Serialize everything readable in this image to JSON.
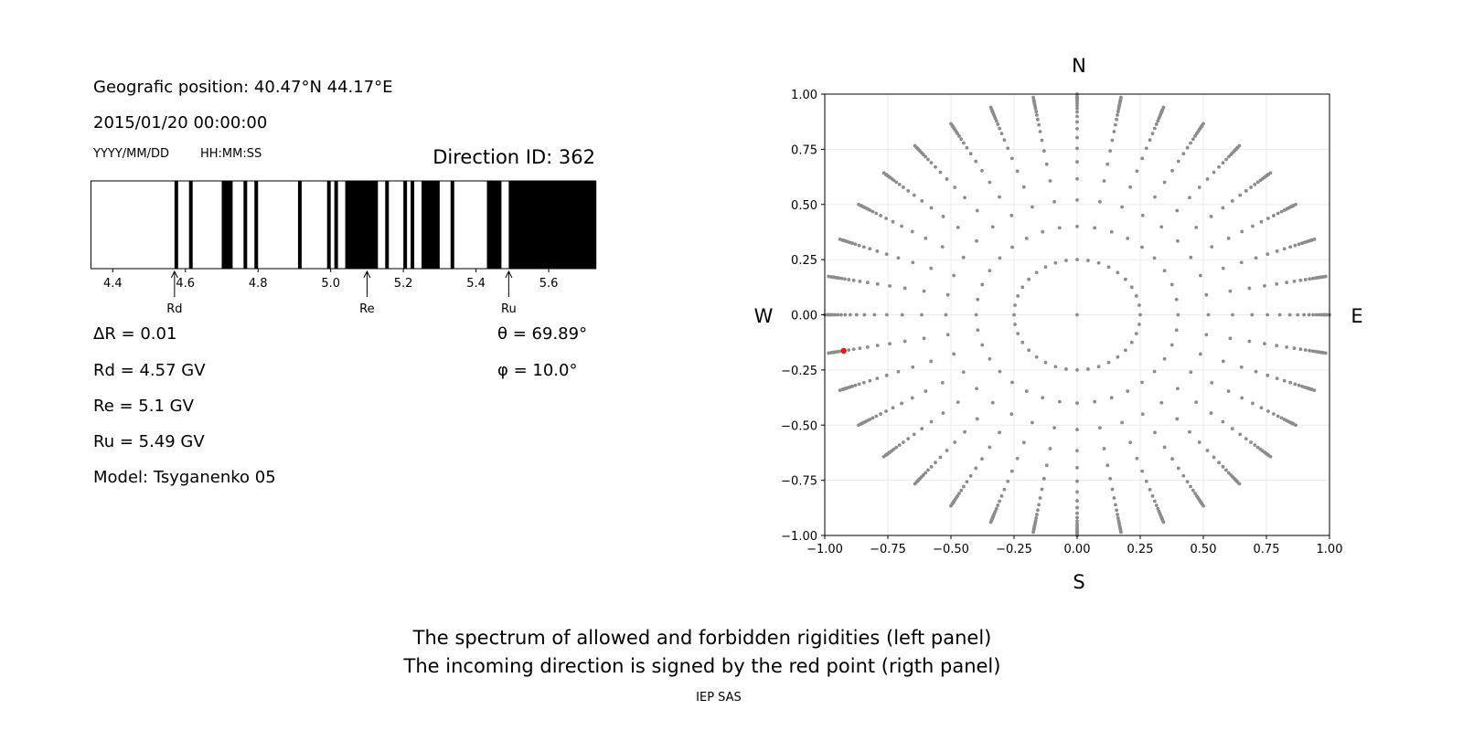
{
  "info": {
    "position": "Geografic position: 40.47°N 44.17°E",
    "datetime": "2015/01/20 00:00:00",
    "date_format": "YYYY/MM/DD",
    "time_format": "HH:MM:SS",
    "direction_id": "Direction ID: 362",
    "delta_r": "ΔR = 0.01",
    "rd": "Rd = 4.57 GV",
    "re": "Re = 5.1 GV",
    "ru": "Ru = 5.49 GV",
    "model": "Model: Tsyganenko 05",
    "theta": "θ = 69.89°",
    "phi": "φ = 10.0°"
  },
  "footer": {
    "line1": "The spectrum of allowed and forbidden rigidities (left panel)",
    "line2": "The incoming direction is signed by the red point (rigth panel)",
    "credit": "IEP SAS"
  },
  "chart_data": [
    {
      "type": "bar",
      "xlim": [
        4.34,
        5.73
      ],
      "xticks": [
        "4.4",
        "4.6",
        "4.8",
        "5.0",
        "5.2",
        "5.4",
        "5.6"
      ],
      "xtick_values": [
        4.4,
        4.6,
        4.8,
        5.0,
        5.2,
        5.4,
        5.6
      ],
      "forbidden_bands": [
        [
          4.57,
          4.58
        ],
        [
          4.61,
          4.62
        ],
        [
          4.7,
          4.73
        ],
        [
          4.76,
          4.77
        ],
        [
          4.79,
          4.8
        ],
        [
          4.91,
          4.92
        ],
        [
          4.99,
          5.0
        ],
        [
          5.01,
          5.02
        ],
        [
          5.04,
          5.13
        ],
        [
          5.15,
          5.16
        ],
        [
          5.2,
          5.21
        ],
        [
          5.22,
          5.23
        ],
        [
          5.25,
          5.3
        ],
        [
          5.33,
          5.34
        ],
        [
          5.43,
          5.47
        ],
        [
          5.49,
          5.73
        ]
      ],
      "markers": [
        {
          "label": "Rd",
          "value": 4.57
        },
        {
          "label": "Re",
          "value": 5.1
        },
        {
          "label": "Ru",
          "value": 5.49
        }
      ],
      "colors": {
        "forbidden": "#000000",
        "allowed": "#ffffff"
      }
    },
    {
      "type": "scatter",
      "xlim": [
        -1,
        1
      ],
      "ylim": [
        -1,
        1
      ],
      "grid": true,
      "xticks": [
        "−1.00",
        "−0.75",
        "−0.50",
        "−0.25",
        "0.00",
        "0.25",
        "0.50",
        "0.75",
        "1.00"
      ],
      "yticks": [
        "1.00",
        "0.75",
        "0.50",
        "0.25",
        "0.00",
        "−0.25",
        "−0.50",
        "−0.75",
        "−1.00"
      ],
      "tick_values": [
        -1,
        -0.75,
        -0.5,
        -0.25,
        0,
        0.25,
        0.5,
        0.75,
        1
      ],
      "compass": {
        "north": "N",
        "south": "S",
        "east": "E",
        "west": "W"
      },
      "ray_angles_step_deg": 10,
      "ray_radii": [
        0.4,
        0.52,
        0.616,
        0.693,
        0.754,
        0.803,
        0.843,
        0.874,
        0.899,
        0.919,
        0.935,
        0.948,
        0.958,
        0.967,
        0.974,
        0.979,
        0.983,
        0.987,
        0.99,
        1.0
      ],
      "inner_ring_radius": 0.25,
      "center_point": [
        0,
        0
      ],
      "selected_point": [
        -0.925,
        -0.163
      ],
      "colors": {
        "points": "#8c8c8c",
        "selected": "#e8190f",
        "grid": "#ebebeb"
      }
    }
  ]
}
